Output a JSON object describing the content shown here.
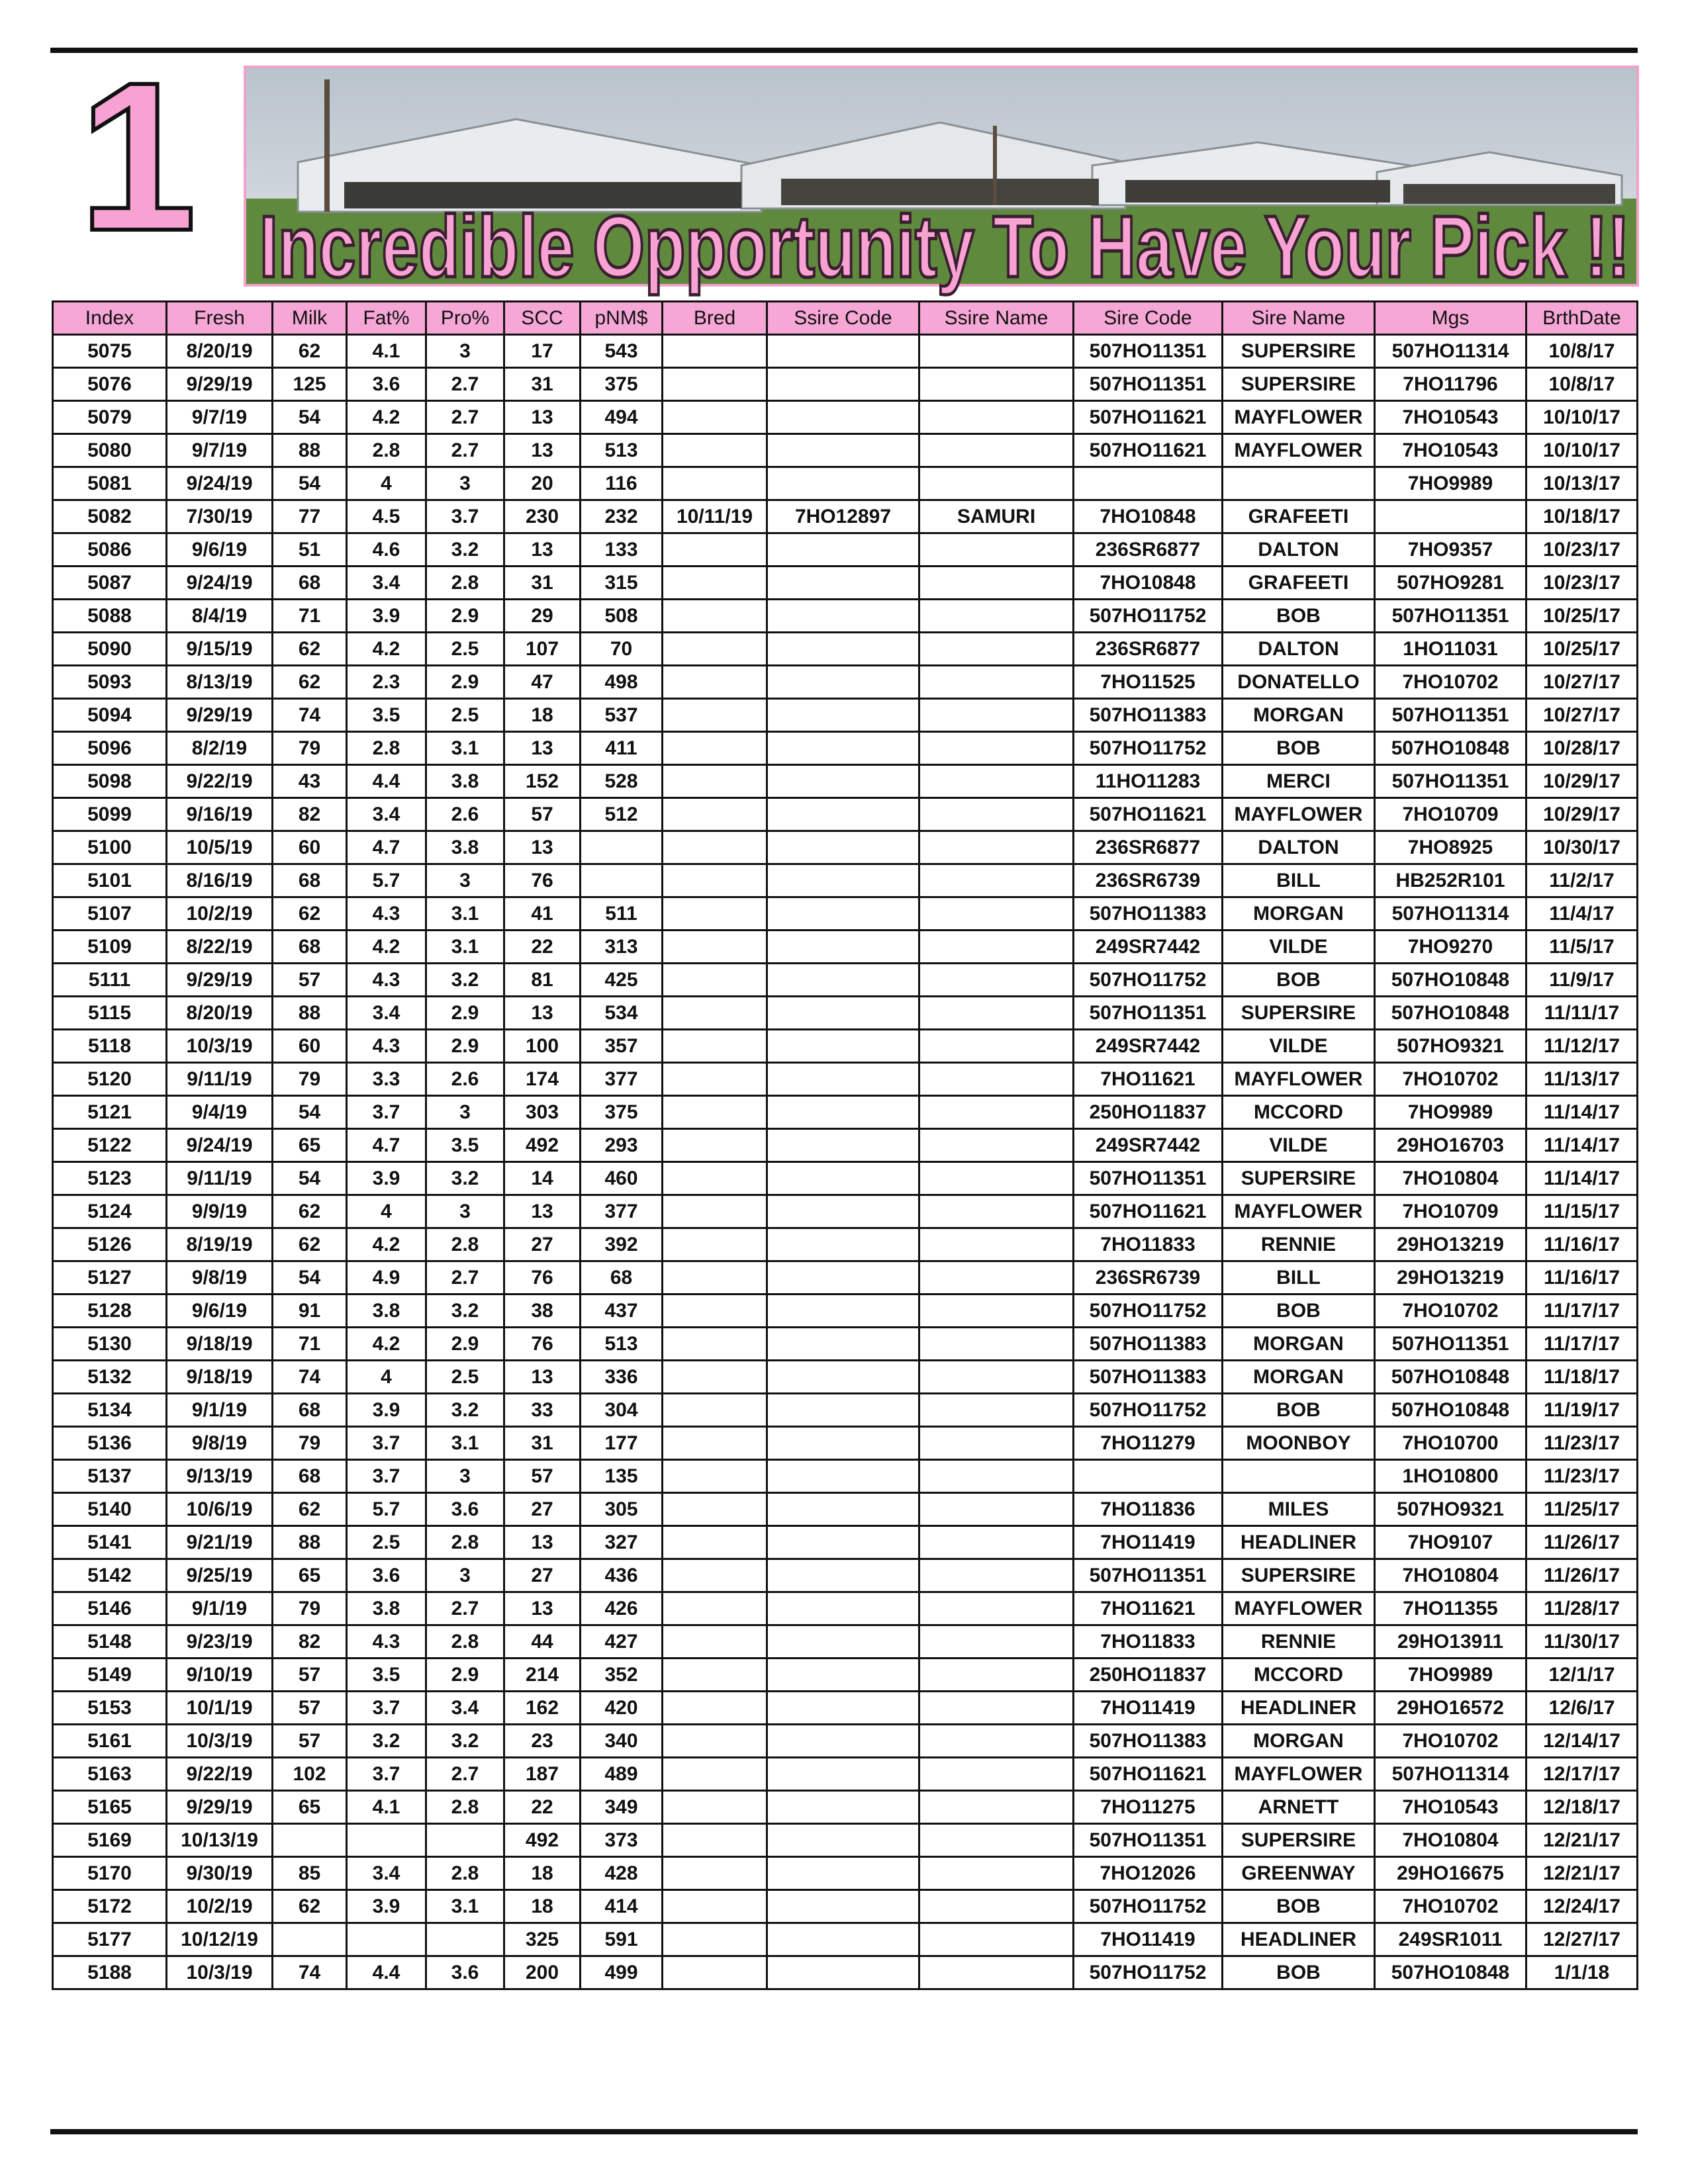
{
  "header": {
    "number": "1",
    "headline": "Incredible Opportunity To Have Your Pick !!"
  },
  "table": {
    "columns": [
      "Index",
      "Fresh",
      "Milk",
      "Fat%",
      "Pro%",
      "SCC",
      "pNM$",
      "Bred",
      "Ssire Code",
      "Ssire Name",
      "Sire Code",
      "Sire Name",
      "Mgs",
      "BrthDate"
    ],
    "rows": [
      [
        5075,
        "8/20/19",
        62,
        4.1,
        3,
        17,
        543,
        null,
        null,
        null,
        "507HO11351",
        "SUPERSIRE",
        "507HO11314",
        "10/8/17"
      ],
      [
        5076,
        "9/29/19",
        125,
        3.6,
        2.7,
        31,
        375,
        null,
        null,
        null,
        "507HO11351",
        "SUPERSIRE",
        "7HO11796",
        "10/8/17"
      ],
      [
        5079,
        "9/7/19",
        54,
        4.2,
        2.7,
        13,
        494,
        null,
        null,
        null,
        "507HO11621",
        "MAYFLOWER",
        "7HO10543",
        "10/10/17"
      ],
      [
        5080,
        "9/7/19",
        88,
        2.8,
        2.7,
        13,
        513,
        null,
        null,
        null,
        "507HO11621",
        "MAYFLOWER",
        "7HO10543",
        "10/10/17"
      ],
      [
        5081,
        "9/24/19",
        54,
        4,
        3,
        20,
        116,
        null,
        null,
        null,
        null,
        null,
        "7HO9989",
        "10/13/17"
      ],
      [
        5082,
        "7/30/19",
        77,
        4.5,
        3.7,
        230,
        232,
        "10/11/19",
        "7HO12897",
        "SAMURI",
        "7HO10848",
        "GRAFEETI",
        null,
        "10/18/17"
      ],
      [
        5086,
        "9/6/19",
        51,
        4.6,
        3.2,
        13,
        133,
        null,
        null,
        null,
        "236SR6877",
        "DALTON",
        "7HO9357",
        "10/23/17"
      ],
      [
        5087,
        "9/24/19",
        68,
        3.4,
        2.8,
        31,
        315,
        null,
        null,
        null,
        "7HO10848",
        "GRAFEETI",
        "507HO9281",
        "10/23/17"
      ],
      [
        5088,
        "8/4/19",
        71,
        3.9,
        2.9,
        29,
        508,
        null,
        null,
        null,
        "507HO11752",
        "BOB",
        "507HO11351",
        "10/25/17"
      ],
      [
        5090,
        "9/15/19",
        62,
        4.2,
        2.5,
        107,
        70,
        null,
        null,
        null,
        "236SR6877",
        "DALTON",
        "1HO11031",
        "10/25/17"
      ],
      [
        5093,
        "8/13/19",
        62,
        2.3,
        2.9,
        47,
        498,
        null,
        null,
        null,
        "7HO11525",
        "DONATELLO",
        "7HO10702",
        "10/27/17"
      ],
      [
        5094,
        "9/29/19",
        74,
        3.5,
        2.5,
        18,
        537,
        null,
        null,
        null,
        "507HO11383",
        "MORGAN",
        "507HO11351",
        "10/27/17"
      ],
      [
        5096,
        "8/2/19",
        79,
        2.8,
        3.1,
        13,
        411,
        null,
        null,
        null,
        "507HO11752",
        "BOB",
        "507HO10848",
        "10/28/17"
      ],
      [
        5098,
        "9/22/19",
        43,
        4.4,
        3.8,
        152,
        528,
        null,
        null,
        null,
        "11HO11283",
        "MERCI",
        "507HO11351",
        "10/29/17"
      ],
      [
        5099,
        "9/16/19",
        82,
        3.4,
        2.6,
        57,
        512,
        null,
        null,
        null,
        "507HO11621",
        "MAYFLOWER",
        "7HO10709",
        "10/29/17"
      ],
      [
        5100,
        "10/5/19",
        60,
        4.7,
        3.8,
        13,
        null,
        null,
        null,
        null,
        "236SR6877",
        "DALTON",
        "7HO8925",
        "10/30/17"
      ],
      [
        5101,
        "8/16/19",
        68,
        5.7,
        3,
        76,
        null,
        null,
        null,
        null,
        "236SR6739",
        "BILL",
        "HB252R101",
        "11/2/17"
      ],
      [
        5107,
        "10/2/19",
        62,
        4.3,
        3.1,
        41,
        511,
        null,
        null,
        null,
        "507HO11383",
        "MORGAN",
        "507HO11314",
        "11/4/17"
      ],
      [
        5109,
        "8/22/19",
        68,
        4.2,
        3.1,
        22,
        313,
        null,
        null,
        null,
        "249SR7442",
        "VILDE",
        "7HO9270",
        "11/5/17"
      ],
      [
        5111,
        "9/29/19",
        57,
        4.3,
        3.2,
        81,
        425,
        null,
        null,
        null,
        "507HO11752",
        "BOB",
        "507HO10848",
        "11/9/17"
      ],
      [
        5115,
        "8/20/19",
        88,
        3.4,
        2.9,
        13,
        534,
        null,
        null,
        null,
        "507HO11351",
        "SUPERSIRE",
        "507HO10848",
        "11/11/17"
      ],
      [
        5118,
        "10/3/19",
        60,
        4.3,
        2.9,
        100,
        357,
        null,
        null,
        null,
        "249SR7442",
        "VILDE",
        "507HO9321",
        "11/12/17"
      ],
      [
        5120,
        "9/11/19",
        79,
        3.3,
        2.6,
        174,
        377,
        null,
        null,
        null,
        "7HO11621",
        "MAYFLOWER",
        "7HO10702",
        "11/13/17"
      ],
      [
        5121,
        "9/4/19",
        54,
        3.7,
        3,
        303,
        375,
        null,
        null,
        null,
        "250HO11837",
        "MCCORD",
        "7HO9989",
        "11/14/17"
      ],
      [
        5122,
        "9/24/19",
        65,
        4.7,
        3.5,
        492,
        293,
        null,
        null,
        null,
        "249SR7442",
        "VILDE",
        "29HO16703",
        "11/14/17"
      ],
      [
        5123,
        "9/11/19",
        54,
        3.9,
        3.2,
        14,
        460,
        null,
        null,
        null,
        "507HO11351",
        "SUPERSIRE",
        "7HO10804",
        "11/14/17"
      ],
      [
        5124,
        "9/9/19",
        62,
        4,
        3,
        13,
        377,
        null,
        null,
        null,
        "507HO11621",
        "MAYFLOWER",
        "7HO10709",
        "11/15/17"
      ],
      [
        5126,
        "8/19/19",
        62,
        4.2,
        2.8,
        27,
        392,
        null,
        null,
        null,
        "7HO11833",
        "RENNIE",
        "29HO13219",
        "11/16/17"
      ],
      [
        5127,
        "9/8/19",
        54,
        4.9,
        2.7,
        76,
        68,
        null,
        null,
        null,
        "236SR6739",
        "BILL",
        "29HO13219",
        "11/16/17"
      ],
      [
        5128,
        "9/6/19",
        91,
        3.8,
        3.2,
        38,
        437,
        null,
        null,
        null,
        "507HO11752",
        "BOB",
        "7HO10702",
        "11/17/17"
      ],
      [
        5130,
        "9/18/19",
        71,
        4.2,
        2.9,
        76,
        513,
        null,
        null,
        null,
        "507HO11383",
        "MORGAN",
        "507HO11351",
        "11/17/17"
      ],
      [
        5132,
        "9/18/19",
        74,
        4,
        2.5,
        13,
        336,
        null,
        null,
        null,
        "507HO11383",
        "MORGAN",
        "507HO10848",
        "11/18/17"
      ],
      [
        5134,
        "9/1/19",
        68,
        3.9,
        3.2,
        33,
        304,
        null,
        null,
        null,
        "507HO11752",
        "BOB",
        "507HO10848",
        "11/19/17"
      ],
      [
        5136,
        "9/8/19",
        79,
        3.7,
        3.1,
        31,
        177,
        null,
        null,
        null,
        "7HO11279",
        "MOONBOY",
        "7HO10700",
        "11/23/17"
      ],
      [
        5137,
        "9/13/19",
        68,
        3.7,
        3,
        57,
        135,
        null,
        null,
        null,
        null,
        null,
        "1HO10800",
        "11/23/17"
      ],
      [
        5140,
        "10/6/19",
        62,
        5.7,
        3.6,
        27,
        305,
        null,
        null,
        null,
        "7HO11836",
        "MILES",
        "507HO9321",
        "11/25/17"
      ],
      [
        5141,
        "9/21/19",
        88,
        2.5,
        2.8,
        13,
        327,
        null,
        null,
        null,
        "7HO11419",
        "HEADLINER",
        "7HO9107",
        "11/26/17"
      ],
      [
        5142,
        "9/25/19",
        65,
        3.6,
        3,
        27,
        436,
        null,
        null,
        null,
        "507HO11351",
        "SUPERSIRE",
        "7HO10804",
        "11/26/17"
      ],
      [
        5146,
        "9/1/19",
        79,
        3.8,
        2.7,
        13,
        426,
        null,
        null,
        null,
        "7HO11621",
        "MAYFLOWER",
        "7HO11355",
        "11/28/17"
      ],
      [
        5148,
        "9/23/19",
        82,
        4.3,
        2.8,
        44,
        427,
        null,
        null,
        null,
        "7HO11833",
        "RENNIE",
        "29HO13911",
        "11/30/17"
      ],
      [
        5149,
        "9/10/19",
        57,
        3.5,
        2.9,
        214,
        352,
        null,
        null,
        null,
        "250HO11837",
        "MCCORD",
        "7HO9989",
        "12/1/17"
      ],
      [
        5153,
        "10/1/19",
        57,
        3.7,
        3.4,
        162,
        420,
        null,
        null,
        null,
        "7HO11419",
        "HEADLINER",
        "29HO16572",
        "12/6/17"
      ],
      [
        5161,
        "10/3/19",
        57,
        3.2,
        3.2,
        23,
        340,
        null,
        null,
        null,
        "507HO11383",
        "MORGAN",
        "7HO10702",
        "12/14/17"
      ],
      [
        5163,
        "9/22/19",
        102,
        3.7,
        2.7,
        187,
        489,
        null,
        null,
        null,
        "507HO11621",
        "MAYFLOWER",
        "507HO11314",
        "12/17/17"
      ],
      [
        5165,
        "9/29/19",
        65,
        4.1,
        2.8,
        22,
        349,
        null,
        null,
        null,
        "7HO11275",
        "ARNETT",
        "7HO10543",
        "12/18/17"
      ],
      [
        5169,
        "10/13/19",
        null,
        null,
        null,
        492,
        373,
        null,
        null,
        null,
        "507HO11351",
        "SUPERSIRE",
        "7HO10804",
        "12/21/17"
      ],
      [
        5170,
        "9/30/19",
        85,
        3.4,
        2.8,
        18,
        428,
        null,
        null,
        null,
        "7HO12026",
        "GREENWAY",
        "29HO16675",
        "12/21/17"
      ],
      [
        5172,
        "10/2/19",
        62,
        3.9,
        3.1,
        18,
        414,
        null,
        null,
        null,
        "507HO11752",
        "BOB",
        "7HO10702",
        "12/24/17"
      ],
      [
        5177,
        "10/12/19",
        null,
        null,
        null,
        325,
        591,
        null,
        null,
        null,
        "7HO11419",
        "HEADLINER",
        "249SR1011",
        "12/27/17"
      ],
      [
        5188,
        "10/3/19",
        74,
        4.4,
        3.6,
        200,
        499,
        null,
        null,
        null,
        "507HO11752",
        "BOB",
        "507HO10848",
        "1/1/18"
      ]
    ]
  }
}
